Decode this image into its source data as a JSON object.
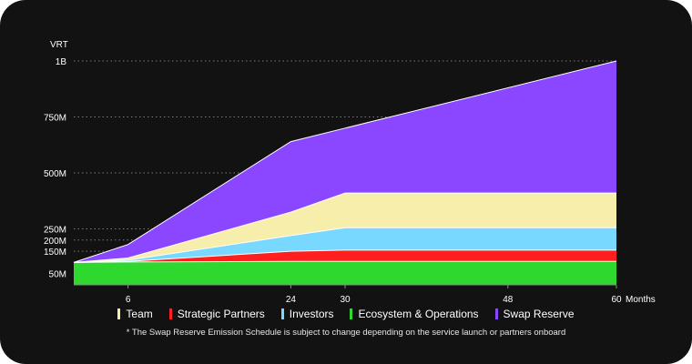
{
  "chart_data": {
    "type": "area",
    "stacked": true,
    "ylabel": "VRT",
    "xlabel": "Months",
    "x": [
      0,
      6,
      24,
      30,
      60
    ],
    "xticks": [
      6,
      24,
      30,
      48,
      60
    ],
    "xlim": [
      0,
      60
    ],
    "yticks": [
      {
        "value": 50,
        "label": "50M"
      },
      {
        "value": 150,
        "label": "150M"
      },
      {
        "value": 200,
        "label": "200M"
      },
      {
        "value": 250,
        "label": "250M"
      },
      {
        "value": 500,
        "label": "500M"
      },
      {
        "value": 750,
        "label": "750M"
      },
      {
        "value": 1000,
        "label": "1B"
      }
    ],
    "ylim": [
      0,
      1000
    ],
    "grid": "horizontal dotted",
    "legend_position": "bottom",
    "series": [
      {
        "name": "Ecosystem & Operations",
        "color": "#2ed82e",
        "values": [
          100,
          102,
          105,
          105,
          105
        ]
      },
      {
        "name": "Strategic Partners",
        "color": "#ff1f1f",
        "values": [
          0,
          3,
          45,
          50,
          50
        ]
      },
      {
        "name": "Investors",
        "color": "#79d8ff",
        "values": [
          0,
          5,
          70,
          100,
          100
        ]
      },
      {
        "name": "Team",
        "color": "#f8eeac",
        "values": [
          0,
          10,
          105,
          155,
          155
        ]
      },
      {
        "name": "Swap Reserve",
        "color": "#8b47ff",
        "values": [
          0,
          60,
          315,
          290,
          590
        ]
      }
    ],
    "legend_order": [
      "Team",
      "Strategic Partners",
      "Investors",
      "Ecosystem & Operations",
      "Swap Reserve"
    ],
    "footnote": "* The Swap Reserve Emission Schedule is subject to change depending on the service launch or partners onboard"
  }
}
